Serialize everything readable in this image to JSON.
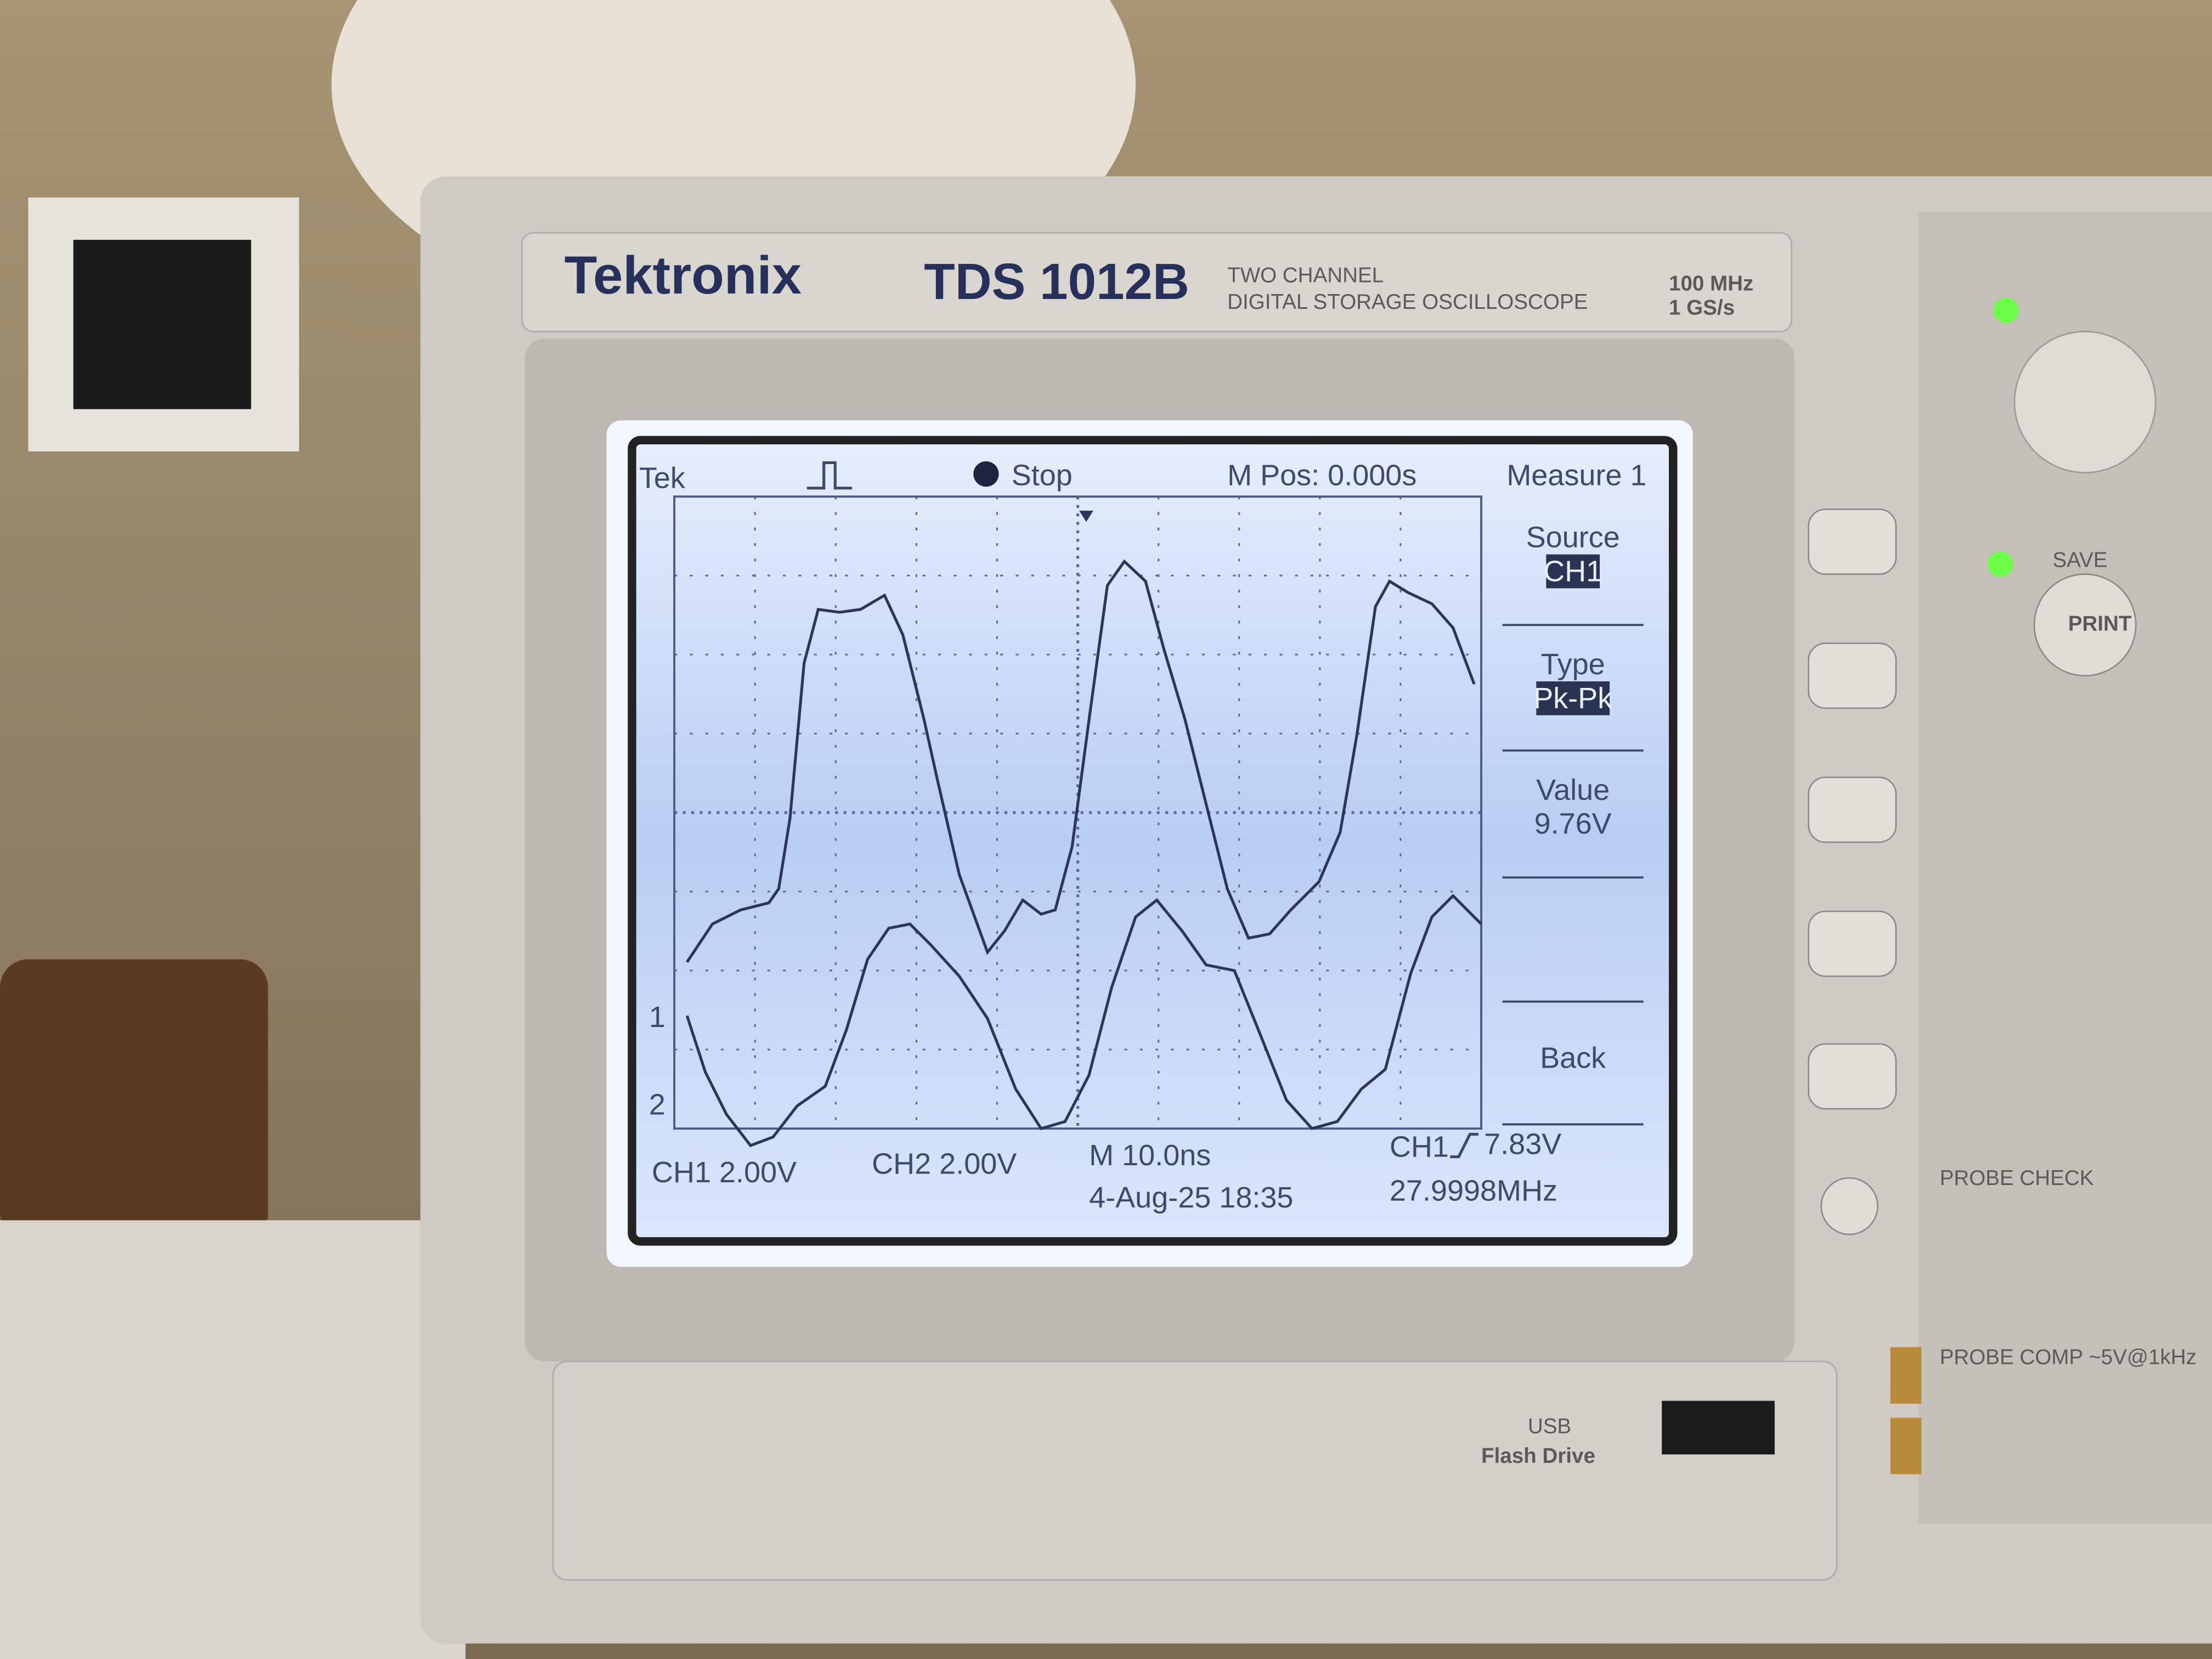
{
  "brand": {
    "name": "Tektronix",
    "model": "TDS 1012B",
    "description": [
      "TWO CHANNEL",
      "DIGITAL STORAGE OSCILLOSCOPE"
    ],
    "specs": [
      "100 MHz",
      "1 GS/s"
    ]
  },
  "screen": {
    "header": {
      "logo": "Tek",
      "state": "Stop",
      "position": "M Pos: 0.000s",
      "menu_title": "Measure 1"
    },
    "menu": [
      {
        "label": "Source",
        "value": "CH1"
      },
      {
        "label": "Type",
        "value": "Pk-Pk"
      },
      {
        "label": "Value",
        "value": "9.76V"
      },
      {
        "label": "Back"
      }
    ],
    "channel_markers": [
      "1",
      "2"
    ],
    "footer": {
      "ch1_scale": "CH1 2.00V",
      "ch2_scale": "CH2 2.00V",
      "timebase": "M 10.0ns",
      "trigger_source": "CH1",
      "trigger_level": "7.83V",
      "timestamp": "4-Aug-25 18:35",
      "frequency": "27.9998MHz"
    }
  },
  "panel": {
    "save_label": "SAVE",
    "print_button": "PRINT",
    "probe_check": "PROBE CHECK",
    "probe_comp": "PROBE COMP ~5V@1kHz"
  },
  "usb": {
    "line1": "USB",
    "line2": "Flash Drive"
  }
}
